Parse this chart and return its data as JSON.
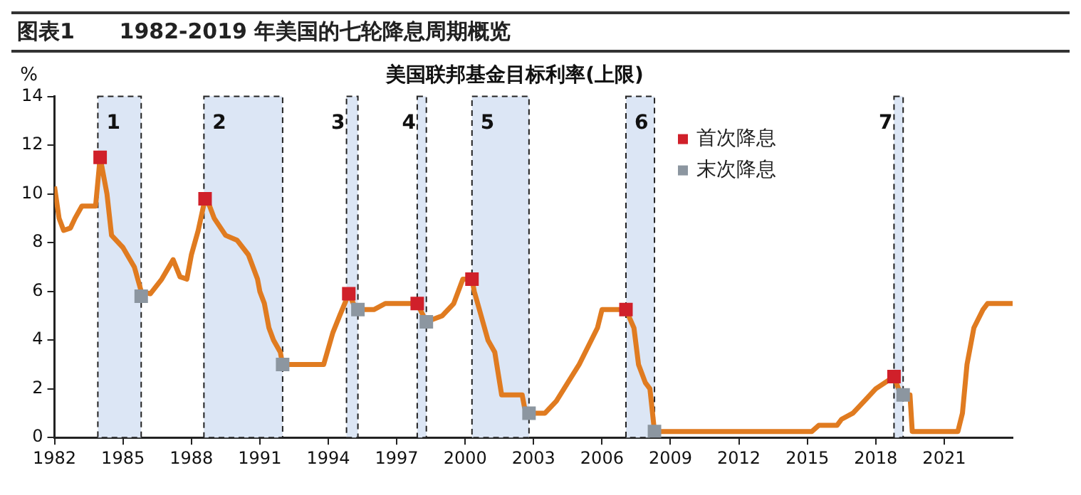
{
  "chart_data": {
    "type": "line",
    "title": "图表1      1982-2019 年美国的七轮降息周期概览",
    "subtitle": "美国联邦基金目标利率(上限)",
    "ylabel": "%",
    "xlim": [
      1982,
      2024
    ],
    "xticks": [
      1982,
      1985,
      1988,
      1991,
      1994,
      1997,
      2000,
      2003,
      2006,
      2009,
      2012,
      2015,
      2018,
      2021
    ],
    "ylim": [
      0,
      14
    ],
    "yticks": [
      0,
      2,
      4,
      6,
      8,
      10,
      12,
      14
    ],
    "grid": false,
    "legend": "top right",
    "bands": [
      {
        "axis": "x",
        "from": 1983.9,
        "to": 1985.8,
        "label": "1",
        "color": "#dce6f5"
      },
      {
        "axis": "x",
        "from": 1988.55,
        "to": 1992.0,
        "label": "2",
        "color": "#dce6f5"
      },
      {
        "axis": "x",
        "from": 1994.8,
        "to": 1995.3,
        "label": "3",
        "color": "#dce6f5"
      },
      {
        "axis": "x",
        "from": 1997.9,
        "to": 1998.3,
        "label": "4",
        "color": "#dce6f5"
      },
      {
        "axis": "x",
        "from": 2000.3,
        "to": 2002.8,
        "label": "5",
        "color": "#dce6f5"
      },
      {
        "axis": "x",
        "from": 2007.05,
        "to": 2008.3,
        "label": "6",
        "color": "#dce6f5"
      },
      {
        "axis": "x",
        "from": 2018.8,
        "to": 2019.2,
        "label": "7",
        "color": "#dce6f5"
      }
    ],
    "series": [
      {
        "color": "#e07b20",
        "marker": "none",
        "line_style": "solid",
        "x": [
          1982.0,
          1982.2,
          1982.4,
          1982.7,
          1982.9,
          1983.2,
          1983.8,
          1983.9,
          1984.0,
          1984.3,
          1984.5,
          1985.0,
          1985.5,
          1985.8,
          1986.2,
          1986.7,
          1987.2,
          1987.5,
          1987.8,
          1988.0,
          1988.3,
          1988.6,
          1988.8,
          1989.0,
          1989.5,
          1990.0,
          1990.5,
          1990.9,
          1991.0,
          1991.2,
          1991.4,
          1991.6,
          1991.9,
          1992.0,
          1993.8,
          1994.2,
          1994.5,
          1994.9,
          1995.1,
          1995.3,
          1996.0,
          1996.5,
          1997.9,
          1998.3,
          1999.0,
          1999.5,
          1999.9,
          2000.3,
          2000.4,
          2001.0,
          2001.3,
          2001.6,
          2002.5,
          2002.6,
          2002.8,
          2003.5,
          2004.0,
          2005.0,
          2005.8,
          2006.0,
          2007.05,
          2007.4,
          2007.6,
          2007.9,
          2008.1,
          2008.3,
          2015.2,
          2015.5,
          2016.3,
          2016.5,
          2017.0,
          2017.5,
          2018.0,
          2018.8,
          2019.0,
          2019.2,
          2019.5,
          2019.6,
          2021.6,
          2021.8,
          2022.0,
          2022.3,
          2022.7,
          2022.9,
          2024.0
        ],
        "values": [
          10.3,
          9.0,
          8.5,
          8.6,
          9.0,
          9.5,
          9.5,
          10.5,
          11.5,
          10.0,
          8.3,
          7.8,
          7.0,
          6.0,
          5.9,
          6.5,
          7.3,
          6.6,
          6.5,
          7.5,
          8.5,
          9.8,
          9.5,
          9.0,
          8.3,
          8.1,
          7.5,
          6.5,
          6.0,
          5.5,
          4.5,
          4.0,
          3.5,
          3.0,
          3.0,
          4.3,
          5.0,
          5.9,
          5.5,
          5.25,
          5.25,
          5.5,
          5.5,
          4.75,
          5.0,
          5.5,
          6.5,
          6.5,
          6.0,
          4.0,
          3.5,
          1.75,
          1.75,
          1.25,
          1.0,
          1.0,
          1.5,
          3.0,
          4.5,
          5.25,
          5.25,
          4.5,
          3.0,
          2.25,
          2.0,
          0.25,
          0.25,
          0.5,
          0.5,
          0.75,
          1.0,
          1.5,
          2.0,
          2.5,
          2.0,
          1.75,
          1.75,
          0.25,
          0.25,
          1.0,
          3.0,
          4.5,
          5.25,
          5.5,
          5.5
        ]
      },
      {
        "type": "scatter",
        "name": "首次降息",
        "color": "#d0202a",
        "marker": "square",
        "x": [
          1984.0,
          1988.6,
          1994.9,
          1997.9,
          2000.3,
          2007.05,
          2018.8
        ],
        "values": [
          11.5,
          9.8,
          5.9,
          5.5,
          6.5,
          5.25,
          2.5
        ]
      },
      {
        "type": "scatter",
        "name": "末次降息",
        "color": "#8c96a0",
        "marker": "square",
        "x": [
          1985.8,
          1992.0,
          1995.3,
          1998.3,
          2002.8,
          2008.3,
          2019.2
        ],
        "values": [
          5.8,
          3.0,
          5.25,
          4.75,
          1.0,
          0.25,
          1.75
        ]
      }
    ]
  }
}
